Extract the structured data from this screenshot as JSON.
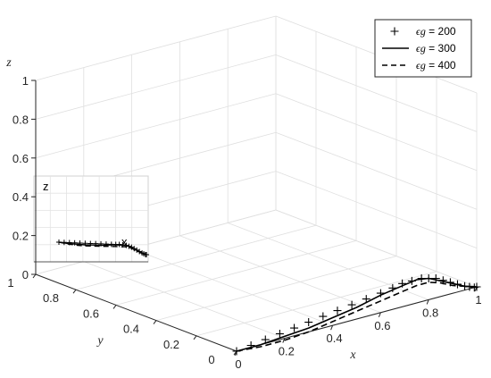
{
  "chart_data": {
    "type": "line3d",
    "axes": {
      "x": {
        "label": "x",
        "ticks": [
          "0",
          "0.2",
          "0.4",
          "0.6",
          "0.8",
          "1"
        ],
        "lim": [
          0,
          1
        ]
      },
      "y": {
        "label": "y",
        "ticks": [
          "0",
          "0.2",
          "0.4",
          "0.6",
          "0.8",
          "1"
        ],
        "lim": [
          0,
          1
        ]
      },
      "z": {
        "label": "z",
        "ticks": [
          "0",
          "0.2",
          "0.4",
          "0.6",
          "0.8",
          "1"
        ],
        "lim": [
          0,
          1
        ]
      }
    },
    "grid": true,
    "legend": {
      "placement": "top-right",
      "entries": [
        {
          "marker": "+",
          "style": "markers",
          "symbol": "ϵg",
          "text": " = 200"
        },
        {
          "marker": "",
          "style": "solid",
          "symbol": "ϵg",
          "text": " = 300"
        },
        {
          "marker": "",
          "style": "dashed",
          "symbol": "ϵg",
          "text": " = 400"
        }
      ]
    },
    "inset": {
      "labels": [
        "z",
        "x"
      ]
    },
    "series": [
      {
        "name": "ϵg = 200",
        "style": "markers",
        "x": [
          0.0,
          0.06,
          0.12,
          0.18,
          0.24,
          0.3,
          0.36,
          0.42,
          0.48,
          0.54,
          0.6,
          0.65,
          0.69,
          0.73,
          0.77,
          0.8,
          0.83,
          0.86,
          0.89,
          0.92,
          0.95,
          0.97,
          0.99,
          1.0
        ],
        "y": [
          0.0,
          0.0,
          0.0,
          0.0,
          0.0,
          0.0,
          0.0,
          0.0,
          0.0,
          0.0,
          0.0,
          0.0,
          0.0,
          0.0,
          0.0,
          0.0,
          0.0,
          0.0,
          0.0,
          0.0,
          0.0,
          0.0,
          0.0,
          0.0
        ],
        "z": [
          0.0,
          0.01,
          0.02,
          0.03,
          0.04,
          0.05,
          0.06,
          0.07,
          0.08,
          0.09,
          0.1,
          0.11,
          0.12,
          0.12,
          0.12,
          0.11,
          0.1,
          0.08,
          0.06,
          0.04,
          0.02,
          0.01,
          0.0,
          0.0
        ]
      },
      {
        "name": "ϵg = 300",
        "style": "solid",
        "x": [
          0.0,
          0.1,
          0.2,
          0.3,
          0.4,
          0.5,
          0.6,
          0.7,
          0.75,
          0.8,
          0.85,
          0.9,
          0.95,
          1.0
        ],
        "y": [
          0.0,
          0.0,
          0.0,
          0.0,
          0.0,
          0.0,
          0.0,
          0.0,
          0.0,
          0.0,
          0.0,
          0.0,
          0.0,
          0.0
        ],
        "z": [
          0.0,
          0.0,
          0.01,
          0.02,
          0.04,
          0.06,
          0.09,
          0.11,
          0.12,
          0.11,
          0.08,
          0.05,
          0.02,
          0.0
        ]
      },
      {
        "name": "ϵg = 400",
        "style": "dashed",
        "x": [
          0.0,
          0.1,
          0.2,
          0.3,
          0.4,
          0.5,
          0.6,
          0.7,
          0.75,
          0.8,
          0.85,
          0.9,
          0.95,
          1.0
        ],
        "y": [
          0.0,
          0.0,
          0.0,
          0.0,
          0.0,
          0.0,
          0.0,
          0.0,
          0.0,
          0.0,
          0.0,
          0.0,
          0.0,
          0.0
        ],
        "z": [
          0.0,
          -0.01,
          -0.01,
          0.0,
          0.02,
          0.04,
          0.06,
          0.08,
          0.09,
          0.09,
          0.07,
          0.04,
          0.02,
          0.0
        ]
      }
    ]
  }
}
